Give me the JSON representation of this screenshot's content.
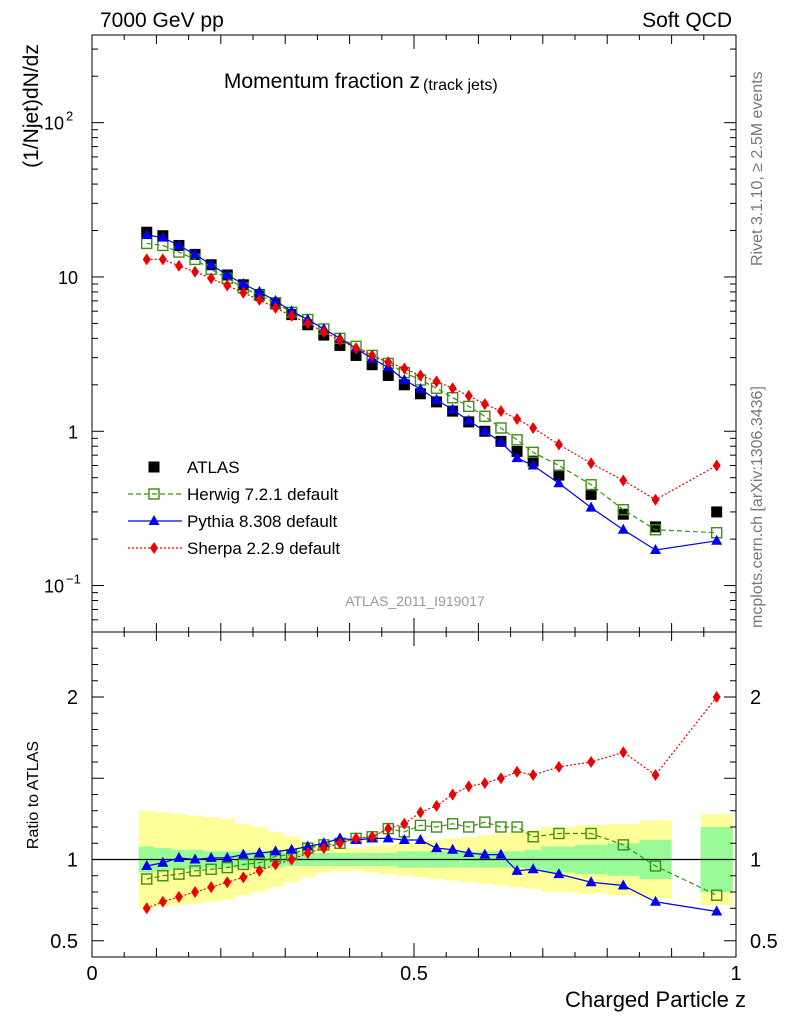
{
  "header": {
    "energy_label": "7000 GeV pp",
    "process_label": "Soft QCD"
  },
  "side_text": {
    "rivet": "Rivet 3.1.10, ≥ 2.5M events",
    "mcplots": "mcplots.cern.ch [arXiv:1306.3436]"
  },
  "chart_data": [
    {
      "type": "scatter",
      "title_main": "Momentum fraction z",
      "title_sub": "(track jets)",
      "ylabel": "(1/Njet)dN/dz",
      "yscale": "log",
      "ylim": [
        0.05,
        370
      ],
      "xlim": [
        0,
        1
      ],
      "y_ticks": [
        {
          "value": 0.1,
          "base": "10",
          "exp": "−1"
        },
        {
          "value": 1,
          "label": "1"
        },
        {
          "value": 10,
          "label": "10"
        },
        {
          "value": 100,
          "base": "10",
          "exp": "2"
        }
      ],
      "analysis_tag": "ATLAS_2011_I919017",
      "legend_position": "lower-left",
      "series": [
        {
          "name": "ATLAS",
          "color": "#000000",
          "marker": "square",
          "line": "none",
          "x": [
            0.085,
            0.11,
            0.135,
            0.16,
            0.185,
            0.21,
            0.235,
            0.26,
            0.285,
            0.31,
            0.335,
            0.36,
            0.385,
            0.41,
            0.435,
            0.46,
            0.485,
            0.51,
            0.535,
            0.56,
            0.585,
            0.61,
            0.635,
            0.66,
            0.685,
            0.725,
            0.775,
            0.825,
            0.875,
            0.97
          ],
          "values": [
            19.5,
            18.5,
            16.0,
            14.0,
            12.0,
            10.3,
            8.9,
            7.7,
            6.7,
            5.7,
            4.9,
            4.2,
            3.6,
            3.1,
            2.7,
            2.3,
            2.0,
            1.75,
            1.55,
            1.35,
            1.15,
            1.0,
            0.86,
            0.74,
            0.64,
            0.52,
            0.39,
            0.29,
            0.24,
            0.3
          ]
        },
        {
          "name": "Herwig 7.2.1 default",
          "color": "#3a8f10",
          "marker": "open-square",
          "line": "dashed",
          "x": [
            0.085,
            0.11,
            0.135,
            0.16,
            0.185,
            0.21,
            0.235,
            0.26,
            0.285,
            0.31,
            0.335,
            0.36,
            0.385,
            0.41,
            0.435,
            0.46,
            0.485,
            0.51,
            0.535,
            0.56,
            0.585,
            0.61,
            0.635,
            0.66,
            0.685,
            0.725,
            0.775,
            0.825,
            0.875,
            0.97
          ],
          "values": [
            16.5,
            16.0,
            14.5,
            13.0,
            11.2,
            9.8,
            8.5,
            7.6,
            6.8,
            5.9,
            5.3,
            4.6,
            4.0,
            3.55,
            3.1,
            2.75,
            2.4,
            2.15,
            1.9,
            1.65,
            1.45,
            1.25,
            1.05,
            0.88,
            0.73,
            0.6,
            0.45,
            0.31,
            0.23,
            0.22
          ]
        },
        {
          "name": "Pythia 8.308 default",
          "color": "#0000ee",
          "marker": "triangle",
          "line": "solid",
          "x": [
            0.085,
            0.11,
            0.135,
            0.16,
            0.185,
            0.21,
            0.235,
            0.26,
            0.285,
            0.31,
            0.335,
            0.36,
            0.385,
            0.41,
            0.435,
            0.46,
            0.485,
            0.51,
            0.535,
            0.56,
            0.585,
            0.61,
            0.635,
            0.66,
            0.685,
            0.725,
            0.775,
            0.825,
            0.875,
            0.97
          ],
          "values": [
            18.7,
            18.0,
            16.0,
            14.0,
            12.0,
            10.3,
            9.0,
            8.0,
            7.0,
            6.0,
            5.3,
            4.6,
            4.0,
            3.45,
            2.95,
            2.6,
            2.15,
            1.88,
            1.6,
            1.38,
            1.17,
            1.0,
            0.85,
            0.67,
            0.6,
            0.46,
            0.32,
            0.23,
            0.17,
            0.195
          ]
        },
        {
          "name": "Sherpa 2.2.9 default",
          "color": "#ee0000",
          "marker": "diamond",
          "line": "dotted",
          "x": [
            0.085,
            0.11,
            0.135,
            0.16,
            0.185,
            0.21,
            0.235,
            0.26,
            0.285,
            0.31,
            0.335,
            0.36,
            0.385,
            0.41,
            0.435,
            0.46,
            0.485,
            0.51,
            0.535,
            0.56,
            0.585,
            0.61,
            0.635,
            0.66,
            0.685,
            0.725,
            0.775,
            0.825,
            0.875,
            0.97
          ],
          "values": [
            13.0,
            13.0,
            11.8,
            10.8,
            9.8,
            8.8,
            7.9,
            7.1,
            6.3,
            5.6,
            5.0,
            4.4,
            3.9,
            3.45,
            3.1,
            2.8,
            2.55,
            2.3,
            2.1,
            1.9,
            1.7,
            1.5,
            1.35,
            1.2,
            1.05,
            0.82,
            0.62,
            0.48,
            0.36,
            0.6
          ]
        }
      ]
    },
    {
      "type": "scatter",
      "ylabel": "Ratio to ATLAS",
      "xlabel": "Charged Particle z",
      "ylim": [
        0.4,
        2.4
      ],
      "xlim": [
        0,
        1
      ],
      "x_ticks": [
        {
          "value": 0,
          "label": "0"
        },
        {
          "value": 0.5,
          "label": "0.5"
        },
        {
          "value": 1,
          "label": "1"
        }
      ],
      "y_ticks": [
        {
          "value": 0.5,
          "label": "0.5"
        },
        {
          "value": 1,
          "label": "1"
        },
        {
          "value": 2,
          "label": "2"
        }
      ],
      "reference_line": 1,
      "uncertainty_bands": {
        "edges": [
          0.0725,
          0.0975,
          0.1225,
          0.1475,
          0.1725,
          0.1975,
          0.2225,
          0.2475,
          0.2725,
          0.2975,
          0.3225,
          0.3475,
          0.3725,
          0.3975,
          0.4225,
          0.4475,
          0.4725,
          0.4975,
          0.5225,
          0.5475,
          0.5725,
          0.5975,
          0.6225,
          0.6475,
          0.6725,
          0.6975,
          0.75,
          0.8,
          0.85,
          0.9,
          0.945,
          0.995
        ],
        "present": [
          true,
          true,
          true,
          true,
          true,
          true,
          true,
          true,
          true,
          true,
          true,
          true,
          true,
          true,
          true,
          true,
          true,
          true,
          true,
          true,
          true,
          true,
          true,
          true,
          true,
          true,
          true,
          true,
          true,
          false,
          true
        ],
        "stat_color": "#98fb98",
        "total_color": "#ffff99",
        "stat_half": [
          0.08,
          0.07,
          0.06,
          0.06,
          0.05,
          0.05,
          0.05,
          0.05,
          0.05,
          0.04,
          0.04,
          0.04,
          0.04,
          0.04,
          0.04,
          0.04,
          0.05,
          0.05,
          0.05,
          0.05,
          0.05,
          0.05,
          0.05,
          0.05,
          0.06,
          0.08,
          0.09,
          0.1,
          0.12,
          0,
          0.2
        ],
        "total_half": [
          0.3,
          0.29,
          0.28,
          0.27,
          0.26,
          0.25,
          0.22,
          0.2,
          0.17,
          0.14,
          0.11,
          0.08,
          0.07,
          0.07,
          0.08,
          0.09,
          0.1,
          0.11,
          0.12,
          0.13,
          0.14,
          0.15,
          0.16,
          0.17,
          0.18,
          0.2,
          0.21,
          0.22,
          0.24,
          0,
          0.28
        ]
      },
      "series": [
        {
          "name": "Herwig 7.2.1 default",
          "color": "#3a8f10",
          "marker": "open-square",
          "line": "dashed",
          "x": [
            0.085,
            0.11,
            0.135,
            0.16,
            0.185,
            0.21,
            0.235,
            0.26,
            0.285,
            0.31,
            0.335,
            0.36,
            0.385,
            0.41,
            0.435,
            0.46,
            0.485,
            0.51,
            0.535,
            0.56,
            0.585,
            0.61,
            0.635,
            0.66,
            0.685,
            0.725,
            0.775,
            0.825,
            0.875,
            0.97
          ],
          "values": [
            0.88,
            0.9,
            0.91,
            0.93,
            0.94,
            0.95,
            0.97,
            0.98,
            1.02,
            1.03,
            1.07,
            1.09,
            1.1,
            1.13,
            1.14,
            1.19,
            1.17,
            1.21,
            1.2,
            1.22,
            1.2,
            1.23,
            1.2,
            1.2,
            1.14,
            1.16,
            1.16,
            1.09,
            0.96,
            0.78
          ]
        },
        {
          "name": "Pythia 8.308 default",
          "color": "#0000ee",
          "marker": "triangle",
          "line": "solid",
          "x": [
            0.085,
            0.11,
            0.135,
            0.16,
            0.185,
            0.21,
            0.235,
            0.26,
            0.285,
            0.31,
            0.335,
            0.36,
            0.385,
            0.41,
            0.435,
            0.46,
            0.485,
            0.51,
            0.535,
            0.56,
            0.585,
            0.61,
            0.635,
            0.66,
            0.685,
            0.725,
            0.775,
            0.825,
            0.875,
            0.97
          ],
          "values": [
            0.96,
            0.98,
            1.01,
            1.0,
            1.01,
            1.01,
            1.03,
            1.04,
            1.05,
            1.06,
            1.08,
            1.1,
            1.13,
            1.12,
            1.13,
            1.13,
            1.12,
            1.12,
            1.07,
            1.06,
            1.04,
            1.03,
            1.03,
            0.93,
            0.94,
            0.91,
            0.86,
            0.84,
            0.74,
            0.68
          ]
        },
        {
          "name": "Sherpa 2.2.9 default",
          "color": "#ee0000",
          "marker": "diamond",
          "line": "dotted",
          "x": [
            0.085,
            0.11,
            0.135,
            0.16,
            0.185,
            0.21,
            0.235,
            0.26,
            0.285,
            0.31,
            0.335,
            0.36,
            0.385,
            0.41,
            0.435,
            0.46,
            0.485,
            0.51,
            0.535,
            0.56,
            0.585,
            0.61,
            0.635,
            0.66,
            0.685,
            0.725,
            0.775,
            0.825,
            0.875,
            0.97
          ],
          "values": [
            0.7,
            0.74,
            0.77,
            0.8,
            0.83,
            0.86,
            0.89,
            0.93,
            0.97,
            1.0,
            1.04,
            1.07,
            1.1,
            1.13,
            1.14,
            1.19,
            1.22,
            1.29,
            1.33,
            1.4,
            1.45,
            1.47,
            1.5,
            1.54,
            1.52,
            1.57,
            1.6,
            1.66,
            1.52,
            2.0
          ]
        }
      ]
    }
  ]
}
